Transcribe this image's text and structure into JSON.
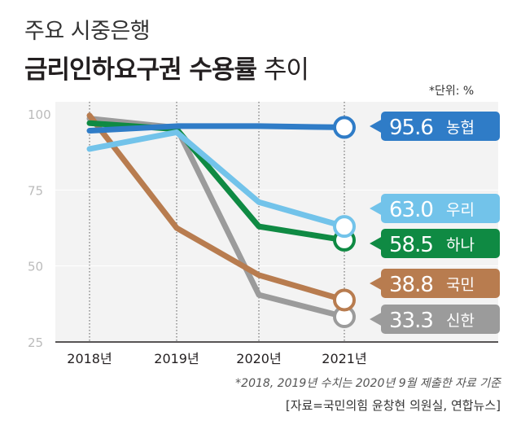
{
  "title": {
    "line1": "주요 시중은행",
    "line2_bold": "금리인하요구권 수용률",
    "line2_light": " 추이"
  },
  "unit_note": "*단위: %",
  "footnote": "*2018, 2019년 수치는 2020년 9월 제출한 자료 기준",
  "source": "[자료=국민의힘 윤창현 의원실, 연합뉴스]",
  "chart_data": {
    "type": "line",
    "title": "금리인하요구권 수용률 추이",
    "ylabel": "%",
    "ylim": [
      25,
      100
    ],
    "yticks": [
      "100",
      "75",
      "50",
      "25"
    ],
    "categories": [
      "2018년",
      "2019년",
      "2020년",
      "2021년"
    ],
    "series": [
      {
        "name": "신한",
        "color": "#9b9b9b",
        "values": [
          98.5,
          95.5,
          40.5,
          33.3
        ],
        "label_value": "33.3"
      },
      {
        "name": "국민",
        "color": "#b87c4f",
        "values": [
          99.5,
          62.5,
          47.0,
          38.8
        ],
        "label_value": "38.8"
      },
      {
        "name": "하나",
        "color": "#0f8a43",
        "values": [
          97.0,
          95.0,
          63.0,
          58.5
        ],
        "label_value": "58.5"
      },
      {
        "name": "우리",
        "color": "#72c3ea",
        "values": [
          88.5,
          94.0,
          71.0,
          63.0
        ],
        "label_value": "63.0"
      },
      {
        "name": "농협",
        "color": "#2f7cc7",
        "values": [
          94.5,
          96.0,
          96.0,
          95.6
        ],
        "label_value": "95.6"
      }
    ]
  }
}
